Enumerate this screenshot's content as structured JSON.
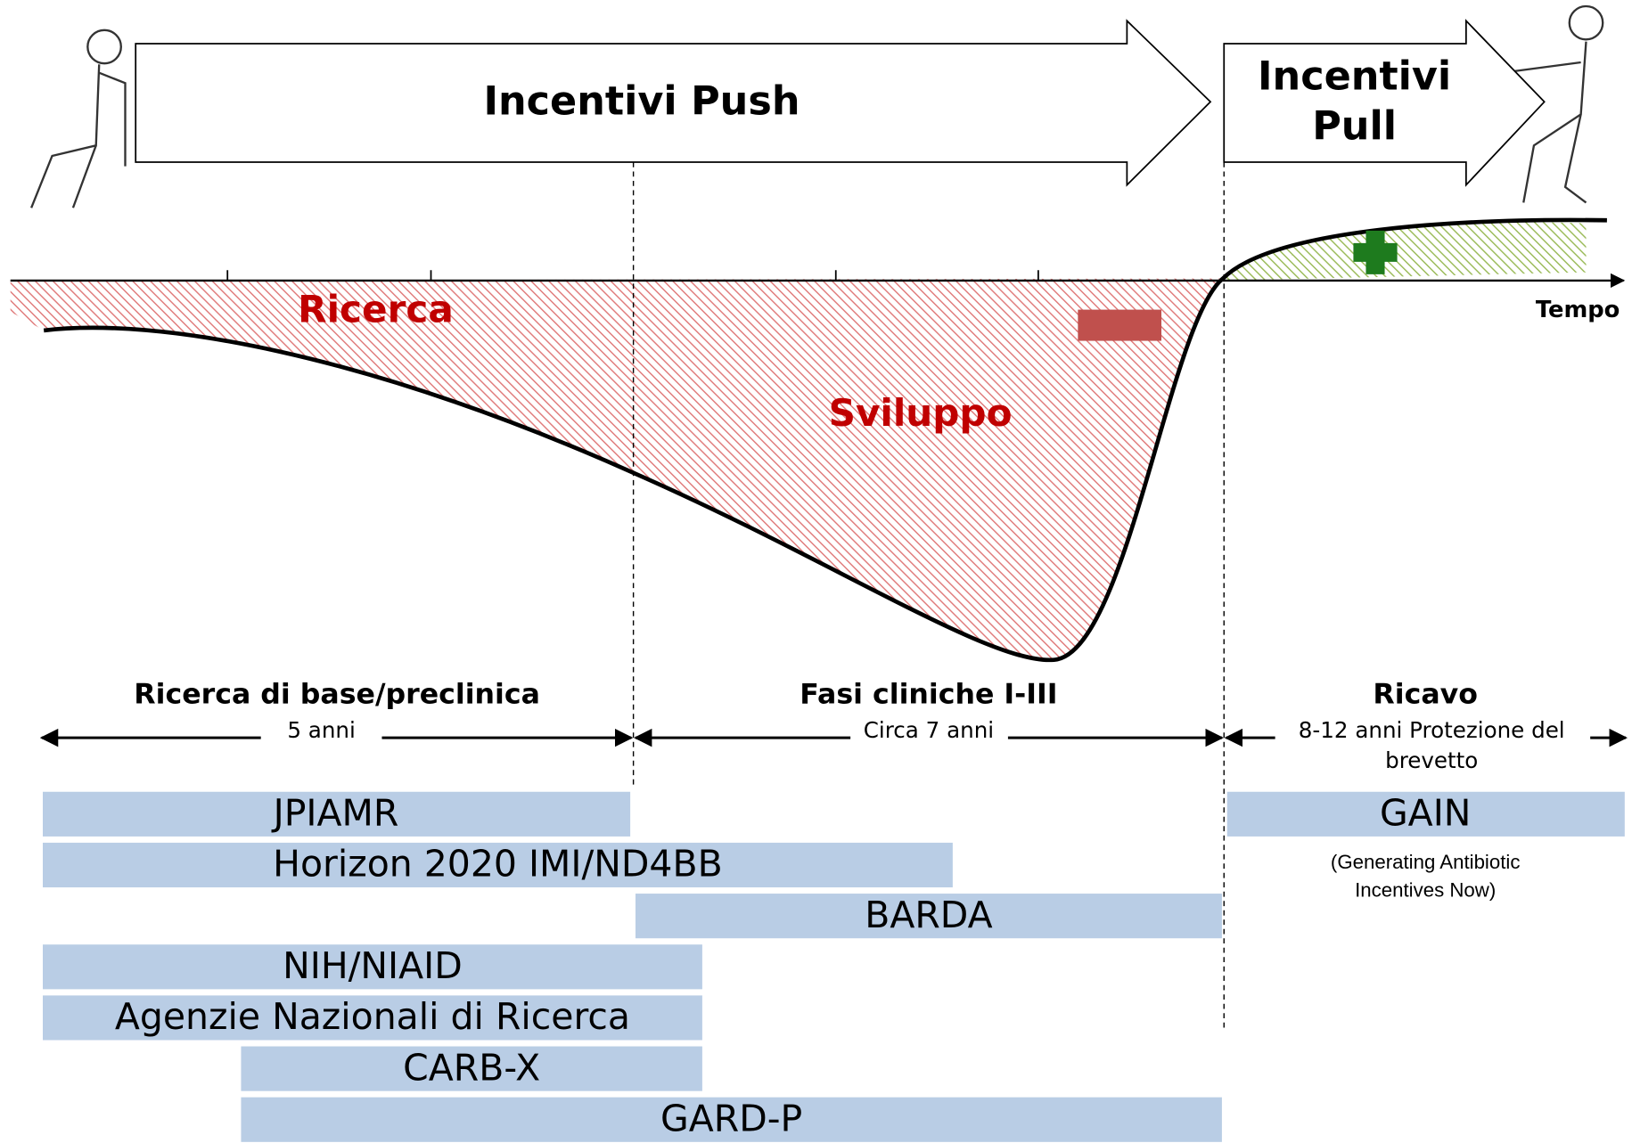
{
  "arrows": {
    "push": "Incentivi Push",
    "pull": [
      "Incentivi",
      "Pull"
    ]
  },
  "chart": {
    "research": "Ricerca",
    "development": "Sviluppo",
    "axis": "Tempo"
  },
  "phases": [
    {
      "title": "Ricerca di base/preclinica",
      "duration": "5 anni"
    },
    {
      "title": "Fasi cliniche I-III",
      "duration": "Circa 7 anni"
    },
    {
      "title": "Ricavo",
      "duration": [
        "8-12 anni  Protezione del",
        "brevetto"
      ]
    }
  ],
  "programs": [
    "JPIAMR",
    "Horizon 2020 IMI/ND4BB",
    "BARDA",
    "NIH/NIAID",
    "Agenzie Nazionali di Ricerca",
    "CARB-X",
    "GARD-P",
    "GAIN"
  ],
  "gain_note": [
    "(Generating Antibiotic",
    "Incentives Now)"
  ]
}
